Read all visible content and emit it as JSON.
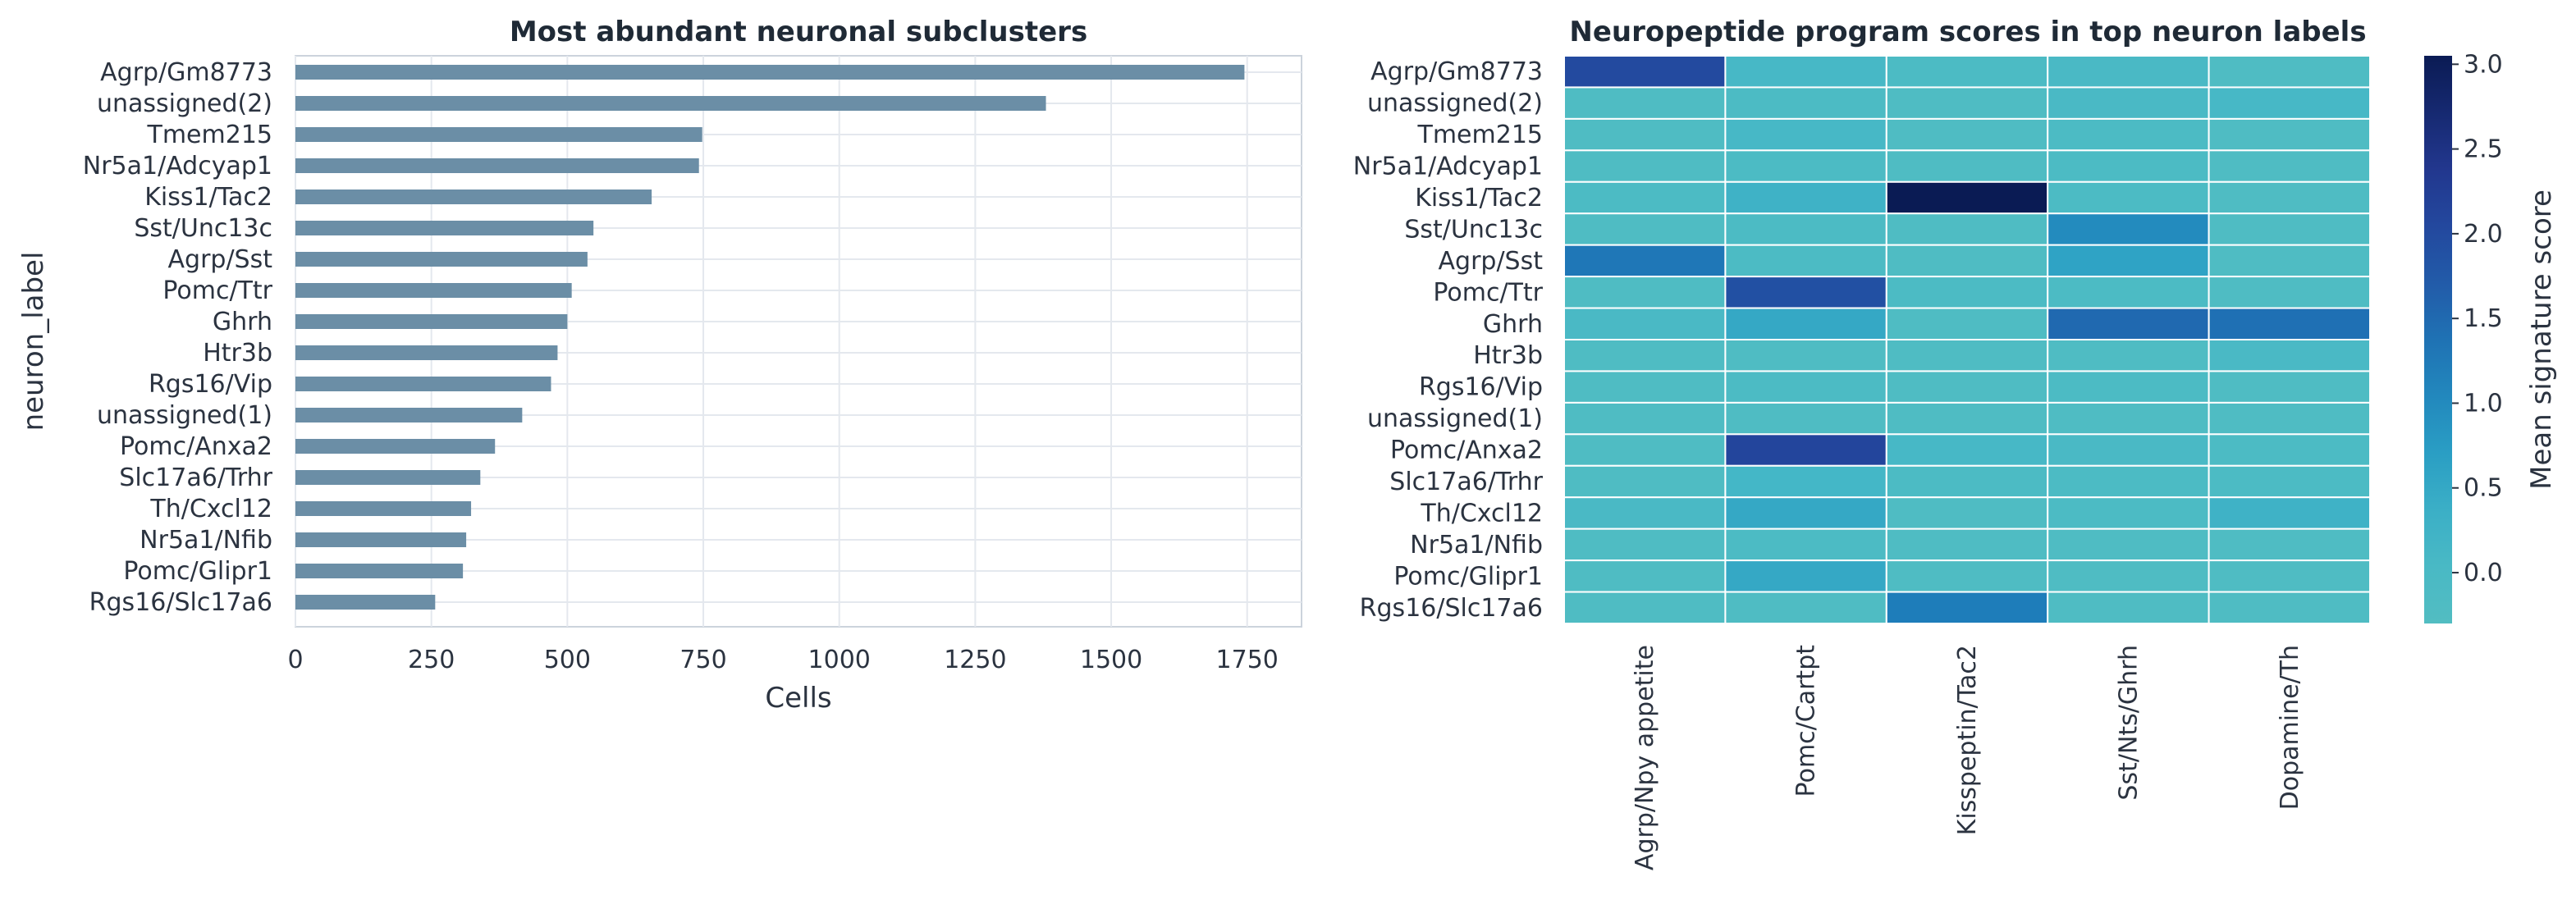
{
  "chart_data": [
    {
      "type": "bar",
      "orientation": "horizontal",
      "title": "Most abundant neuronal subclusters",
      "xlabel": "Cells",
      "ylabel": "neuron_label",
      "xlim": [
        0,
        1850
      ],
      "xticks": [
        0,
        250,
        500,
        750,
        1000,
        1250,
        1500,
        1750
      ],
      "grid": true,
      "color": "#6b8ea6",
      "categories": [
        "Agrp/Gm8773",
        "unassigned(2)",
        "Tmem215",
        "Nr5a1/Adcyap1",
        "Kiss1/Tac2",
        "Sst/Unc13c",
        "Agrp/Sst",
        "Pomc/Ttr",
        "Ghrh",
        "Htr3b",
        "Rgs16/Vip",
        "unassigned(1)",
        "Pomc/Anxa2",
        "Slc17a6/Trhr",
        "Th/Cxcl12",
        "Nr5a1/Nfib",
        "Pomc/Glipr1",
        "Rgs16/Slc17a6"
      ],
      "values": [
        1745,
        1380,
        748,
        742,
        655,
        548,
        537,
        508,
        500,
        482,
        470,
        417,
        367,
        340,
        323,
        314,
        308,
        257
      ]
    },
    {
      "type": "heatmap",
      "title": "Neuropeptide program scores in top neuron labels",
      "colorbar_label": "Mean signature score",
      "colorbar_ticks": [
        0.0,
        0.5,
        1.0,
        1.5,
        2.0,
        2.5,
        3.0
      ],
      "color_range": [
        -0.3,
        3.05
      ],
      "colormap": "YlGnBu",
      "rows": [
        "Agrp/Gm8773",
        "unassigned(2)",
        "Tmem215",
        "Nr5a1/Adcyap1",
        "Kiss1/Tac2",
        "Sst/Unc13c",
        "Agrp/Sst",
        "Pomc/Ttr",
        "Ghrh",
        "Htr3b",
        "Rgs16/Vip",
        "unassigned(1)",
        "Pomc/Anxa2",
        "Slc17a6/Trhr",
        "Th/Cxcl12",
        "Nr5a1/Nfib",
        "Pomc/Glipr1",
        "Rgs16/Slc17a6"
      ],
      "columns": [
        "Agrp/Npy appetite",
        "Pomc/Cartpt",
        "Kisspeptin/Tac2",
        "Sst/Nts/Ghrh",
        "Dopamine/Th"
      ],
      "values": [
        [
          2.0,
          0.1,
          -0.1,
          0.0,
          -0.2
        ],
        [
          -0.2,
          -0.1,
          -0.2,
          0.0,
          0.1
        ],
        [
          -0.2,
          0.1,
          -0.2,
          -0.1,
          -0.2
        ],
        [
          -0.2,
          -0.1,
          -0.2,
          -0.1,
          -0.2
        ],
        [
          -0.1,
          0.3,
          3.05,
          -0.1,
          -0.2
        ],
        [
          -0.2,
          -0.1,
          -0.2,
          1.0,
          -0.2
        ],
        [
          1.3,
          -0.1,
          -0.2,
          0.6,
          -0.2
        ],
        [
          -0.2,
          1.9,
          -0.1,
          -0.1,
          -0.2
        ],
        [
          0.0,
          0.5,
          -0.2,
          1.5,
          1.4
        ],
        [
          -0.2,
          -0.2,
          -0.2,
          -0.2,
          0.0
        ],
        [
          -0.2,
          -0.1,
          -0.2,
          -0.1,
          -0.2
        ],
        [
          -0.2,
          -0.2,
          -0.2,
          -0.2,
          -0.2
        ],
        [
          -0.2,
          2.1,
          0.1,
          0.0,
          -0.1
        ],
        [
          -0.2,
          0.2,
          -0.1,
          -0.1,
          -0.1
        ],
        [
          0.0,
          0.5,
          -0.2,
          -0.1,
          0.3
        ],
        [
          -0.2,
          -0.1,
          -0.2,
          -0.2,
          -0.2
        ],
        [
          -0.2,
          0.5,
          -0.2,
          -0.2,
          -0.2
        ],
        [
          -0.2,
          -0.2,
          1.2,
          -0.2,
          -0.2
        ]
      ]
    }
  ]
}
